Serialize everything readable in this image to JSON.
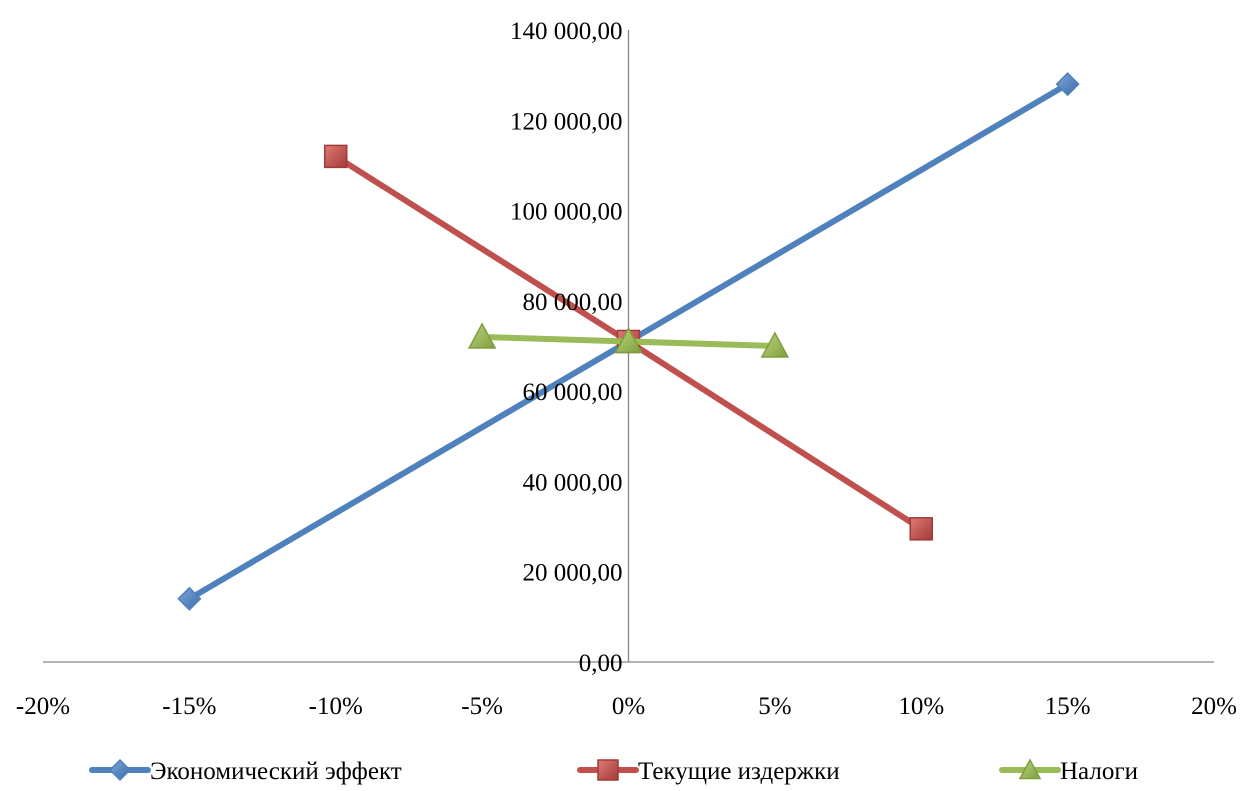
{
  "chart_data": {
    "type": "scatter",
    "x_axis": {
      "range": [
        -0.2,
        0.2
      ],
      "tick_values": [
        -0.2,
        -0.15,
        -0.1,
        -0.05,
        0,
        0.05,
        0.1,
        0.15,
        0.2
      ],
      "tick_labels": [
        "-20%",
        "-15%",
        "-10%",
        "-5%",
        "0%",
        "5%",
        "10%",
        "15%",
        "20%"
      ]
    },
    "y_axis": {
      "range": [
        0,
        140000
      ],
      "tick_values": [
        0,
        20000,
        40000,
        60000,
        80000,
        100000,
        120000,
        140000
      ],
      "tick_labels": [
        "0,00",
        "20 000,00",
        "40 000,00",
        "60 000,00",
        "80 000,00",
        "100 000,00",
        "120 000,00",
        "140 000,00"
      ]
    },
    "grid": false,
    "legend_position": "bottom",
    "series": [
      {
        "name": "Экономический эффект",
        "color": "#4F81BD",
        "marker": "diamond",
        "points": [
          [
            -0.15,
            14000
          ],
          [
            0,
            71000
          ],
          [
            0.15,
            128000
          ]
        ]
      },
      {
        "name": "Текущие издержки",
        "color": "#C0504D",
        "marker": "square",
        "points": [
          [
            -0.1,
            112000
          ],
          [
            0,
            71000
          ],
          [
            0.1,
            29500
          ]
        ]
      },
      {
        "name": "Налоги",
        "color": "#9BBB59",
        "marker": "triangle",
        "points": [
          [
            -0.05,
            72000
          ],
          [
            0,
            71000
          ],
          [
            0.05,
            70000
          ]
        ]
      }
    ]
  }
}
